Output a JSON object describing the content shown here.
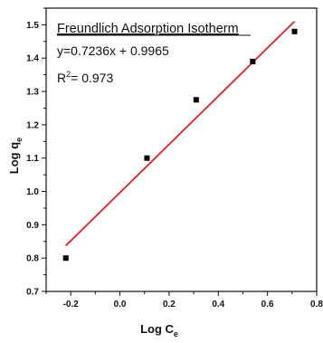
{
  "chart_data": {
    "type": "scatter",
    "title": "",
    "xlabel_main": "Log C",
    "xlabel_sub": "e",
    "ylabel_main": "Log q",
    "ylabel_sub": "e",
    "xlim": [
      -0.3,
      0.8
    ],
    "ylim": [
      0.7,
      1.55
    ],
    "xticks": [
      -0.2,
      0.0,
      0.2,
      0.4,
      0.6,
      0.8
    ],
    "xtick_labels": [
      "-0.2",
      "0.0",
      "0.2",
      "0.4",
      "0.6",
      "0.8"
    ],
    "yticks": [
      0.7,
      0.8,
      0.9,
      1.0,
      1.1,
      1.2,
      1.3,
      1.4,
      1.5
    ],
    "ytick_labels": [
      "0.7",
      "0.8",
      "0.9",
      "1.0",
      "1.1",
      "1.2",
      "1.3",
      "1.4",
      "1.5"
    ],
    "grid": false,
    "points": {
      "x": [
        -0.22,
        0.11,
        0.31,
        0.54,
        0.71
      ],
      "y": [
        0.8,
        1.1,
        1.275,
        1.39,
        1.48
      ],
      "color": "#000000"
    },
    "fit_line": {
      "slope": 0.7236,
      "intercept": 0.9965,
      "x_range": [
        -0.22,
        0.71
      ],
      "color": "#e02020"
    },
    "annotations": {
      "title": "Freundlich Adsorption Isotherm",
      "equation": "y=0.7236x + 0.9965",
      "r2_prefix": "R",
      "r2_sup": "2",
      "r2_value": "= 0.973"
    }
  }
}
